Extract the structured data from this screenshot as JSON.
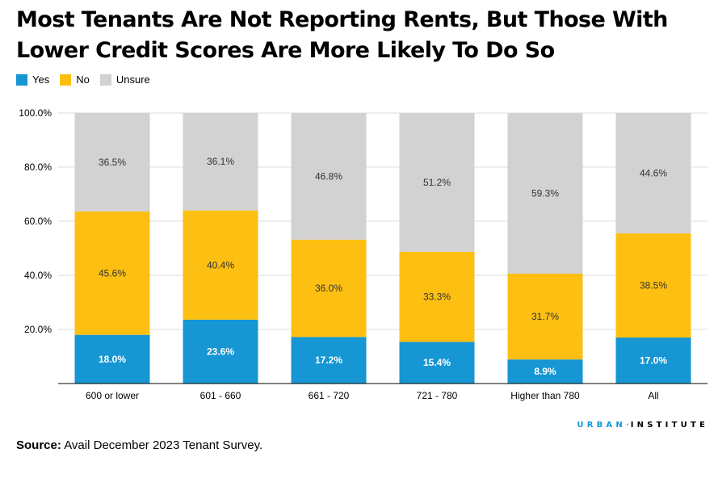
{
  "title": {
    "line1": "Most Tenants Are Not Reporting Rents, But Those With",
    "line2": "Lower Credit Scores Are More Likely To Do So"
  },
  "legend": [
    {
      "label": "Yes",
      "color": "#1696d2"
    },
    {
      "label": "No",
      "color": "#fdbf11"
    },
    {
      "label": "Unsure",
      "color": "#d2d2d2"
    }
  ],
  "chart_data": {
    "type": "bar",
    "stacked": true,
    "title": "Most Tenants Are Not Reporting Rents, But Those With Lower Credit Scores Are More Likely To Do So",
    "xlabel": "",
    "ylabel": "",
    "ylim": [
      0,
      100
    ],
    "yticks": [
      20,
      40,
      60,
      80,
      100
    ],
    "ytick_labels": [
      "20.0%",
      "40.0%",
      "60.0%",
      "80.0%",
      "100.0%"
    ],
    "categories": [
      "600 or lower",
      "601 - 660",
      "661 - 720",
      "721 - 780",
      "Higher than 780",
      "All"
    ],
    "series": [
      {
        "name": "Yes",
        "color": "#1696d2",
        "label_color": "#ffffff",
        "values": [
          18.0,
          23.6,
          17.2,
          15.4,
          8.9,
          17.0
        ]
      },
      {
        "name": "No",
        "color": "#fdbf11",
        "label_color": "#333333",
        "values": [
          45.6,
          40.4,
          36.0,
          33.3,
          31.7,
          38.5
        ]
      },
      {
        "name": "Unsure",
        "color": "#d2d2d2",
        "label_color": "#333333",
        "values": [
          36.5,
          36.1,
          46.8,
          51.2,
          59.3,
          44.6
        ]
      }
    ],
    "grid": true,
    "legend_position": "top-left"
  },
  "logo": {
    "urban": "URBAN",
    "dot": "·",
    "institute": "INSTITUTE"
  },
  "source": {
    "label": "Source:",
    "text": " Avail December 2023 Tenant Survey."
  }
}
